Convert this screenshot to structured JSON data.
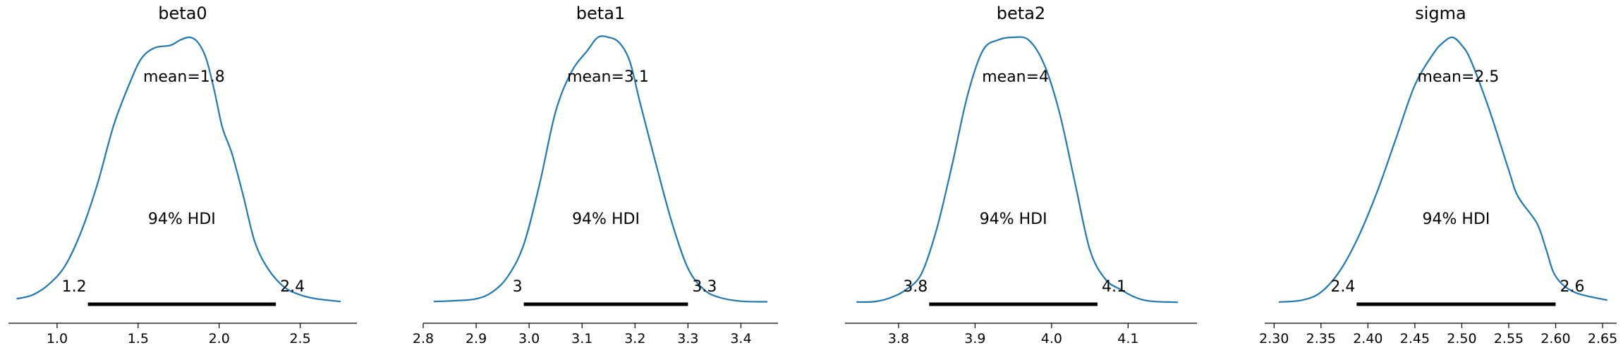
{
  "chart_data": [
    {
      "type": "area",
      "title": "beta0",
      "mean_text": "mean=1.8",
      "hdi_text": "94% HDI",
      "hdi_low_text": "1.2",
      "hdi_high_text": "2.4",
      "hdi": [
        1.19,
        2.35
      ],
      "xlim": [
        0.7,
        2.85
      ],
      "xticks": [
        "1.0",
        "1.5",
        "2.0",
        "2.5"
      ],
      "x": [
        0.75,
        0.85,
        0.95,
        1.05,
        1.15,
        1.25,
        1.35,
        1.45,
        1.52,
        1.6,
        1.7,
        1.76,
        1.82,
        1.87,
        1.92,
        1.97,
        2.02,
        2.08,
        2.15,
        2.22,
        2.3,
        2.4,
        2.5,
        2.6,
        2.75
      ],
      "density": [
        0.015,
        0.03,
        0.07,
        0.14,
        0.27,
        0.45,
        0.67,
        0.83,
        0.92,
        0.96,
        0.97,
        0.99,
        1.0,
        0.98,
        0.92,
        0.8,
        0.66,
        0.56,
        0.4,
        0.23,
        0.13,
        0.06,
        0.03,
        0.015,
        0.005
      ],
      "line_color": "#1f77b4"
    },
    {
      "type": "area",
      "title": "beta1",
      "mean_text": "mean=3.1",
      "hdi_text": "94% HDI",
      "hdi_low_text": "3",
      "hdi_high_text": "3.3",
      "hdi": [
        2.99,
        3.3
      ],
      "xlim": [
        2.8,
        3.47
      ],
      "xticks": [
        "2.8",
        "2.9",
        "3.0",
        "3.1",
        "3.2",
        "3.3",
        "3.4"
      ],
      "x": [
        2.82,
        2.86,
        2.9,
        2.93,
        2.96,
        2.99,
        3.02,
        3.05,
        3.08,
        3.11,
        3.13,
        3.15,
        3.17,
        3.19,
        3.21,
        3.24,
        3.27,
        3.3,
        3.33,
        3.36,
        3.4,
        3.45
      ],
      "density": [
        0.005,
        0.008,
        0.015,
        0.04,
        0.1,
        0.22,
        0.45,
        0.72,
        0.87,
        0.95,
        1.0,
        1.0,
        0.98,
        0.91,
        0.75,
        0.52,
        0.3,
        0.13,
        0.05,
        0.02,
        0.006,
        0.004
      ],
      "line_color": "#1f77b4"
    },
    {
      "type": "area",
      "title": "beta2",
      "mean_text": "mean=4",
      "hdi_text": "94% HDI",
      "hdi_low_text": "3.8",
      "hdi_high_text": "4.1",
      "hdi": [
        3.84,
        4.06
      ],
      "xlim": [
        3.73,
        4.19
      ],
      "xticks": [
        "3.8",
        "3.9",
        "4.0",
        "4.1"
      ],
      "x": [
        3.745,
        3.77,
        3.79,
        3.81,
        3.83,
        3.85,
        3.87,
        3.89,
        3.91,
        3.93,
        3.95,
        3.97,
        3.99,
        4.01,
        4.03,
        4.05,
        4.07,
        4.09,
        4.11,
        4.13,
        4.165
      ],
      "density": [
        0.003,
        0.005,
        0.02,
        0.05,
        0.11,
        0.28,
        0.52,
        0.78,
        0.95,
        0.99,
        1.0,
        0.99,
        0.9,
        0.72,
        0.46,
        0.2,
        0.09,
        0.05,
        0.02,
        0.006,
        0.002
      ],
      "line_color": "#1f77b4"
    },
    {
      "type": "area",
      "title": "sigma",
      "mean_text": "mean=2.5",
      "hdi_text": "94% HDI",
      "hdi_low_text": "2.4",
      "hdi_high_text": "2.6",
      "hdi": [
        2.388,
        2.6
      ],
      "xlim": [
        2.29,
        2.665
      ],
      "xticks": [
        "2.30",
        "2.35",
        "2.40",
        "2.45",
        "2.50",
        "2.55",
        "2.60",
        "2.65"
      ],
      "x": [
        2.305,
        2.33,
        2.35,
        2.37,
        2.39,
        2.41,
        2.43,
        2.45,
        2.47,
        2.48,
        2.49,
        2.5,
        2.51,
        2.53,
        2.55,
        2.56,
        2.58,
        2.59,
        2.6,
        2.62,
        2.655
      ],
      "density": [
        0.003,
        0.01,
        0.04,
        0.12,
        0.25,
        0.42,
        0.62,
        0.82,
        0.94,
        0.98,
        1.0,
        0.97,
        0.91,
        0.72,
        0.5,
        0.4,
        0.3,
        0.2,
        0.1,
        0.04,
        0.01
      ],
      "line_color": "#1f77b4"
    }
  ]
}
